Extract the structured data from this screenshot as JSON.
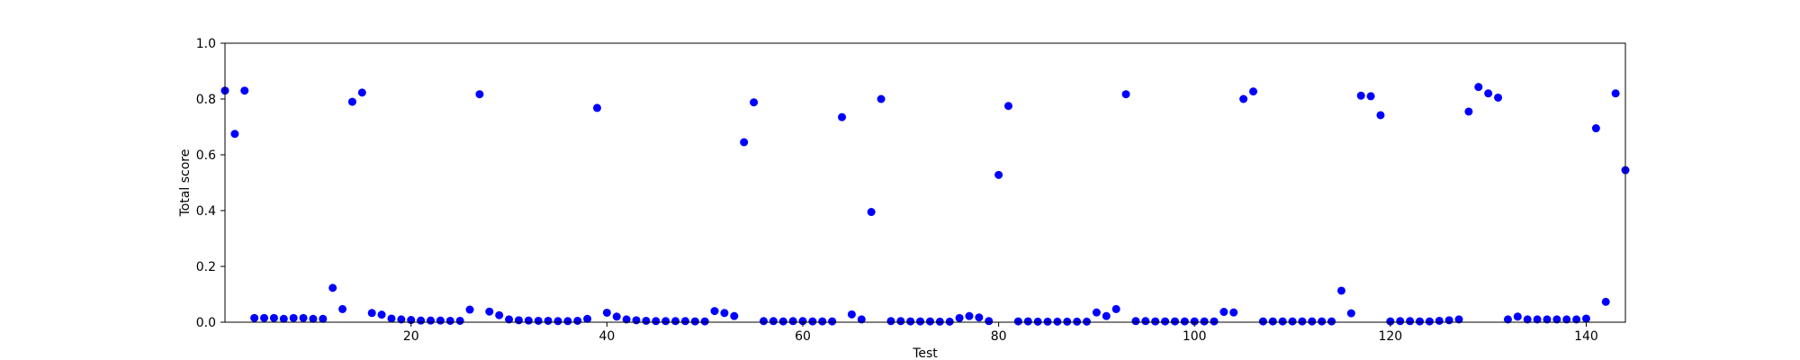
{
  "chart_data": {
    "type": "scatter",
    "title": "",
    "xlabel": "Test",
    "ylabel": "Total score",
    "xlim": [
      1,
      144
    ],
    "ylim": [
      0,
      1
    ],
    "xticks": [
      20,
      40,
      60,
      80,
      100,
      120,
      140
    ],
    "yticks": [
      0.0,
      0.2,
      0.4,
      0.6,
      0.8,
      1.0
    ],
    "ytick_labels": [
      "0.0",
      "0.2",
      "0.4",
      "0.6",
      "0.8",
      "1.0"
    ],
    "grid": false,
    "marker_color": "#0000ff",
    "series": [
      {
        "x": [
          1,
          2,
          3,
          4,
          5,
          6,
          7,
          8,
          9,
          10,
          11,
          12,
          13,
          14,
          15,
          16,
          17,
          18,
          19,
          20,
          21,
          22,
          23,
          24,
          25,
          26,
          27,
          28,
          29,
          30,
          31,
          32,
          33,
          34,
          35,
          36,
          37,
          38,
          39,
          40,
          41,
          42,
          43,
          44,
          45,
          46,
          47,
          48,
          49,
          50,
          51,
          52,
          53,
          54,
          55,
          56,
          57,
          58,
          59,
          60,
          61,
          62,
          63,
          64,
          65,
          66,
          67,
          68,
          69,
          70,
          71,
          72,
          73,
          74,
          75,
          76,
          77,
          78,
          79,
          80,
          81,
          82,
          83,
          84,
          85,
          86,
          87,
          88,
          89,
          90,
          91,
          92,
          93,
          94,
          95,
          96,
          97,
          98,
          99,
          100,
          101,
          102,
          103,
          104,
          105,
          106,
          107,
          108,
          109,
          110,
          111,
          112,
          113,
          114,
          115,
          116,
          117,
          118,
          119,
          120,
          121,
          122,
          123,
          124,
          125,
          126,
          127,
          128,
          129,
          130,
          131,
          132,
          133,
          134,
          135,
          136,
          137,
          138,
          139,
          140,
          141,
          142,
          143,
          144
        ],
        "y": [
          0.83,
          0.675,
          0.83,
          0.015,
          0.015,
          0.015,
          0.012,
          0.015,
          0.015,
          0.012,
          0.012,
          0.123,
          0.047,
          0.79,
          0.823,
          0.033,
          0.027,
          0.013,
          0.01,
          0.008,
          0.006,
          0.006,
          0.006,
          0.005,
          0.005,
          0.045,
          0.817,
          0.038,
          0.025,
          0.01,
          0.007,
          0.006,
          0.005,
          0.005,
          0.004,
          0.004,
          0.005,
          0.012,
          0.768,
          0.034,
          0.02,
          0.01,
          0.007,
          0.005,
          0.004,
          0.004,
          0.004,
          0.004,
          0.003,
          0.003,
          0.04,
          0.033,
          0.022,
          0.645,
          0.788,
          0.004,
          0.004,
          0.003,
          0.004,
          0.004,
          0.003,
          0.003,
          0.003,
          0.735,
          0.028,
          0.01,
          0.395,
          0.8,
          0.004,
          0.004,
          0.003,
          0.003,
          0.003,
          0.002,
          0.002,
          0.015,
          0.022,
          0.017,
          0.004,
          0.528,
          0.775,
          0.003,
          0.003,
          0.002,
          0.002,
          0.002,
          0.002,
          0.002,
          0.002,
          0.035,
          0.022,
          0.047,
          0.817,
          0.004,
          0.004,
          0.003,
          0.003,
          0.003,
          0.003,
          0.003,
          0.003,
          0.003,
          0.037,
          0.035,
          0.8,
          0.827,
          0.003,
          0.003,
          0.003,
          0.003,
          0.003,
          0.003,
          0.003,
          0.003,
          0.113,
          0.032,
          0.812,
          0.81,
          0.742,
          0.003,
          0.004,
          0.004,
          0.003,
          0.003,
          0.005,
          0.007,
          0.01,
          0.755,
          0.843,
          0.82,
          0.805,
          0.01,
          0.02,
          0.01,
          0.01,
          0.01,
          0.01,
          0.01,
          0.01,
          0.013,
          0.695,
          0.073,
          0.82,
          0.545
        ]
      }
    ]
  }
}
